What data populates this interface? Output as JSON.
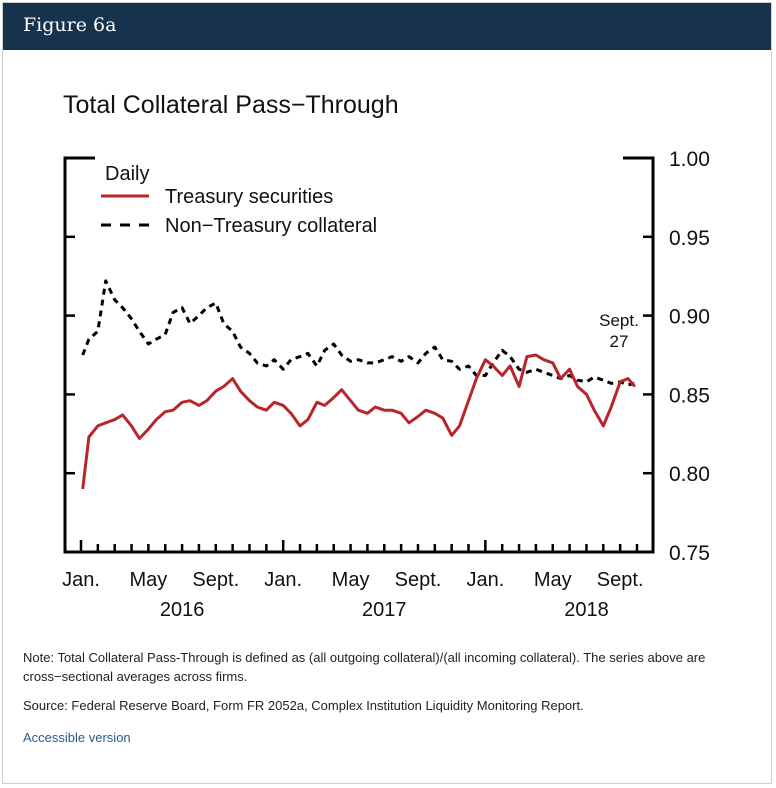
{
  "header": {
    "figure_label": "Figure 6a"
  },
  "note": "Note: Total Collateral Pass-Through is defined as (all outgoing collateral)/(all incoming collateral). The series above are cross−sectional averages across firms.",
  "source": "Source: Federal Reserve Board, Form FR 2052a, Complex Institution Liquidity Monitoring Report.",
  "accessible_link": "Accessible version",
  "chart_data": {
    "type": "line",
    "title": "Total Collateral Pass−Through",
    "legend_title": "Daily",
    "legend_placement": "top-left",
    "y_axis_side": "right",
    "ylim": [
      0.75,
      1.0
    ],
    "y_ticks": [
      "1.00",
      "0.95",
      "0.90",
      "0.85",
      "0.80",
      "0.75"
    ],
    "y_tick_values": [
      1.0,
      0.95,
      0.9,
      0.85,
      0.8,
      0.75
    ],
    "x_range_months": [
      "2016-01",
      "2018-10"
    ],
    "x_tick_labels": [
      {
        "label": "Jan.",
        "month": "2016-01"
      },
      {
        "label": "May",
        "month": "2016-05"
      },
      {
        "label": "Sept.",
        "month": "2016-09"
      },
      {
        "label": "Jan.",
        "month": "2017-01"
      },
      {
        "label": "May",
        "month": "2017-05"
      },
      {
        "label": "Sept.",
        "month": "2017-09"
      },
      {
        "label": "Jan.",
        "month": "2018-01"
      },
      {
        "label": "May",
        "month": "2018-05"
      },
      {
        "label": "Sept.",
        "month": "2018-09"
      }
    ],
    "year_labels": [
      "2016",
      "2017",
      "2018"
    ],
    "annotation": {
      "line1": "Sept.",
      "line2": "27"
    },
    "colors": {
      "treasury": "#b8262b",
      "non_treasury": "#000000"
    },
    "series": [
      {
        "name": "Treasury securities",
        "style": "solid",
        "x": [
          "2016-01-04",
          "2016-01-15",
          "2016-02-01",
          "2016-02-15",
          "2016-03-01",
          "2016-03-15",
          "2016-04-01",
          "2016-04-15",
          "2016-05-01",
          "2016-05-15",
          "2016-06-01",
          "2016-06-15",
          "2016-07-01",
          "2016-07-15",
          "2016-08-01",
          "2016-08-15",
          "2016-09-01",
          "2016-09-15",
          "2016-10-01",
          "2016-10-15",
          "2016-11-01",
          "2016-11-15",
          "2016-12-01",
          "2016-12-15",
          "2017-01-01",
          "2017-01-15",
          "2017-02-01",
          "2017-02-15",
          "2017-03-01",
          "2017-03-15",
          "2017-04-01",
          "2017-04-15",
          "2017-05-01",
          "2017-05-15",
          "2017-06-01",
          "2017-06-15",
          "2017-07-01",
          "2017-07-15",
          "2017-08-01",
          "2017-08-15",
          "2017-09-01",
          "2017-09-15",
          "2017-10-01",
          "2017-10-15",
          "2017-11-01",
          "2017-11-15",
          "2017-12-01",
          "2017-12-15",
          "2018-01-01",
          "2018-01-15",
          "2018-02-01",
          "2018-02-15",
          "2018-03-01",
          "2018-03-15",
          "2018-04-01",
          "2018-04-15",
          "2018-05-01",
          "2018-05-15",
          "2018-06-01",
          "2018-06-15",
          "2018-07-01",
          "2018-07-15",
          "2018-08-01",
          "2018-08-15",
          "2018-09-01",
          "2018-09-15",
          "2018-09-27"
        ],
        "values": [
          0.79,
          0.823,
          0.83,
          0.832,
          0.834,
          0.837,
          0.83,
          0.822,
          0.828,
          0.834,
          0.839,
          0.84,
          0.845,
          0.846,
          0.843,
          0.846,
          0.852,
          0.855,
          0.86,
          0.852,
          0.846,
          0.842,
          0.84,
          0.845,
          0.843,
          0.838,
          0.83,
          0.834,
          0.845,
          0.843,
          0.848,
          0.853,
          0.846,
          0.84,
          0.838,
          0.842,
          0.84,
          0.84,
          0.838,
          0.832,
          0.836,
          0.84,
          0.838,
          0.835,
          0.824,
          0.83,
          0.846,
          0.86,
          0.872,
          0.868,
          0.862,
          0.868,
          0.855,
          0.874,
          0.875,
          0.872,
          0.87,
          0.86,
          0.866,
          0.855,
          0.85,
          0.84,
          0.83,
          0.842,
          0.858,
          0.86,
          0.855
        ]
      },
      {
        "name": "Non−Treasury collateral",
        "style": "dashed",
        "x": [
          "2016-01-04",
          "2016-01-15",
          "2016-02-01",
          "2016-02-15",
          "2016-03-01",
          "2016-03-15",
          "2016-04-01",
          "2016-04-15",
          "2016-05-01",
          "2016-05-15",
          "2016-06-01",
          "2016-06-15",
          "2016-07-01",
          "2016-07-15",
          "2016-08-01",
          "2016-08-15",
          "2016-09-01",
          "2016-09-15",
          "2016-10-01",
          "2016-10-15",
          "2016-11-01",
          "2016-11-15",
          "2016-12-01",
          "2016-12-15",
          "2017-01-01",
          "2017-01-15",
          "2017-02-01",
          "2017-02-15",
          "2017-03-01",
          "2017-03-15",
          "2017-04-01",
          "2017-04-15",
          "2017-05-01",
          "2017-05-15",
          "2017-06-01",
          "2017-06-15",
          "2017-07-01",
          "2017-07-15",
          "2017-08-01",
          "2017-08-15",
          "2017-09-01",
          "2017-09-15",
          "2017-10-01",
          "2017-10-15",
          "2017-11-01",
          "2017-11-15",
          "2017-12-01",
          "2017-12-15",
          "2018-01-01",
          "2018-01-15",
          "2018-02-01",
          "2018-02-15",
          "2018-03-01",
          "2018-03-15",
          "2018-04-01",
          "2018-04-15",
          "2018-05-01",
          "2018-05-15",
          "2018-06-01",
          "2018-06-15",
          "2018-07-01",
          "2018-07-15",
          "2018-08-01",
          "2018-08-15",
          "2018-09-01",
          "2018-09-15",
          "2018-09-27"
        ],
        "values": [
          0.875,
          0.885,
          0.89,
          0.922,
          0.91,
          0.905,
          0.898,
          0.89,
          0.882,
          0.885,
          0.888,
          0.902,
          0.905,
          0.895,
          0.9,
          0.905,
          0.908,
          0.895,
          0.89,
          0.88,
          0.876,
          0.87,
          0.868,
          0.872,
          0.866,
          0.872,
          0.874,
          0.876,
          0.868,
          0.878,
          0.882,
          0.875,
          0.871,
          0.872,
          0.87,
          0.87,
          0.872,
          0.874,
          0.871,
          0.874,
          0.87,
          0.876,
          0.88,
          0.872,
          0.871,
          0.866,
          0.868,
          0.862,
          0.862,
          0.87,
          0.878,
          0.874,
          0.866,
          0.864,
          0.866,
          0.864,
          0.862,
          0.86,
          0.862,
          0.859,
          0.858,
          0.861,
          0.859,
          0.857,
          0.858,
          0.856,
          0.857
        ]
      }
    ]
  }
}
